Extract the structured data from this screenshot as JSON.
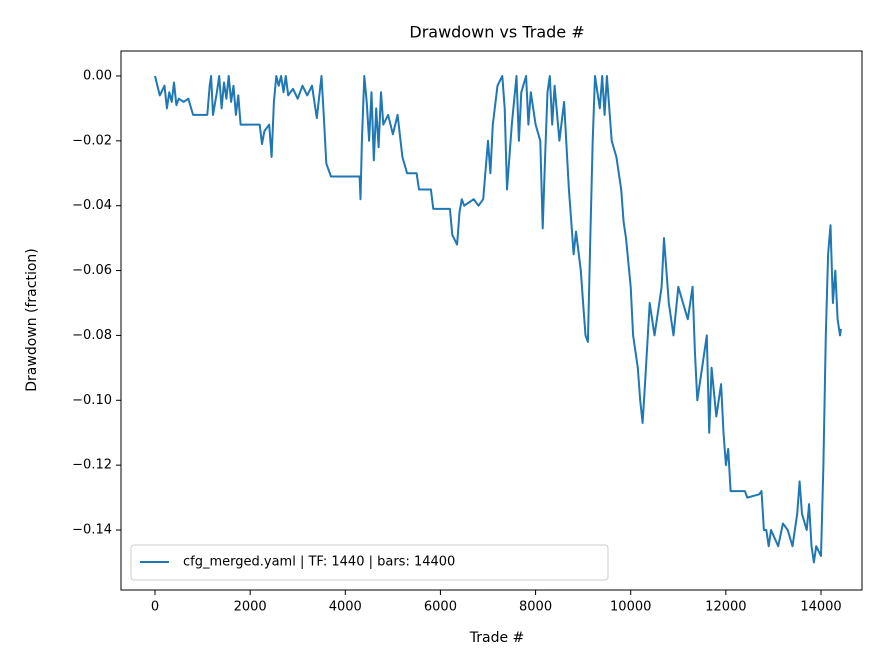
{
  "chart_data": {
    "type": "line",
    "title": "Drawdown vs Trade #",
    "x_label": "Trade #",
    "y_label": "Drawdown (fraction)",
    "legend_position": "lower left",
    "xlim": [
      -715,
      14862
    ],
    "ylim": [
      -0.1585,
      0.0077
    ],
    "xticks": [
      0,
      2000,
      4000,
      6000,
      8000,
      10000,
      12000,
      14000
    ],
    "yticks": [
      {
        "value": 0,
        "label": "0.00"
      },
      {
        "value": -0.02,
        "label": "−0.02"
      },
      {
        "value": -0.04,
        "label": "−0.04"
      },
      {
        "value": -0.06,
        "label": "−0.06"
      },
      {
        "value": -0.08,
        "label": "−0.08"
      },
      {
        "value": -0.1,
        "label": "−0.10"
      },
      {
        "value": -0.12,
        "label": "−0.12"
      },
      {
        "value": -0.14,
        "label": "−0.14"
      }
    ],
    "x": [
      0,
      100,
      200,
      250,
      300,
      350,
      400,
      450,
      500,
      600,
      700,
      800,
      1100,
      1150,
      1180,
      1220,
      1300,
      1350,
      1400,
      1450,
      1500,
      1550,
      1600,
      1650,
      1700,
      1750,
      1800,
      2200,
      2250,
      2300,
      2400,
      2450,
      2500,
      2550,
      2600,
      2650,
      2700,
      2750,
      2800,
      2900,
      3000,
      3100,
      3200,
      3300,
      3400,
      3500,
      3550,
      3600,
      3700,
      4300,
      4320,
      4350,
      4400,
      4450,
      4500,
      4550,
      4600,
      4650,
      4700,
      4750,
      4800,
      4900,
      5000,
      5100,
      5200,
      5300,
      5500,
      5550,
      5800,
      5850,
      6200,
      6250,
      6350,
      6400,
      6450,
      6500,
      6700,
      6800,
      6900,
      7000,
      7050,
      7100,
      7200,
      7300,
      7350,
      7400,
      7500,
      7600,
      7650,
      7700,
      7800,
      7850,
      7900,
      8000,
      8100,
      8150,
      8200,
      8250,
      8300,
      8350,
      8400,
      8500,
      8600,
      8700,
      8750,
      8800,
      8850,
      8950,
      9000,
      9050,
      9100,
      9150,
      9200,
      9250,
      9350,
      9400,
      9450,
      9500,
      9600,
      9700,
      9800,
      9850,
      9900,
      10000,
      10050,
      10150,
      10200,
      10250,
      10300,
      10400,
      10500,
      10600,
      10650,
      10700,
      10750,
      10800,
      10900,
      11000,
      11100,
      11200,
      11300,
      11350,
      11400,
      11500,
      11600,
      11650,
      11700,
      11800,
      11900,
      11950,
      12000,
      12050,
      12100,
      12400,
      12450,
      12700,
      12750,
      12800,
      12850,
      12900,
      12950,
      13100,
      13200,
      13300,
      13400,
      13500,
      13550,
      13600,
      13700,
      13750,
      13800,
      13850,
      13900,
      14000,
      14050,
      14100,
      14150,
      14200,
      14250,
      14300,
      14350,
      14400,
      14420
    ],
    "series": [
      {
        "name": "cfg_merged.yaml | TF: 1440 | bars: 14400",
        "color": "#1f77b4",
        "values": [
          0,
          -0.006,
          -0.003,
          -0.01,
          -0.005,
          -0.008,
          -0.002,
          -0.009,
          -0.007,
          -0.008,
          -0.007,
          -0.012,
          -0.012,
          -0.003,
          0,
          -0.012,
          -0.005,
          0,
          -0.01,
          -0.002,
          -0.007,
          0,
          -0.008,
          -0.003,
          -0.012,
          -0.006,
          -0.015,
          -0.015,
          -0.021,
          -0.017,
          -0.015,
          -0.025,
          -0.008,
          0,
          -0.003,
          0,
          -0.005,
          0,
          -0.006,
          -0.004,
          -0.007,
          -0.003,
          -0.006,
          -0.003,
          -0.013,
          0,
          -0.013,
          -0.027,
          -0.031,
          -0.031,
          -0.038,
          -0.02,
          0,
          -0.008,
          -0.02,
          -0.005,
          -0.026,
          -0.01,
          -0.022,
          -0.005,
          -0.015,
          -0.012,
          -0.018,
          -0.012,
          -0.025,
          -0.03,
          -0.03,
          -0.035,
          -0.035,
          -0.041,
          -0.041,
          -0.049,
          -0.052,
          -0.042,
          -0.038,
          -0.04,
          -0.038,
          -0.04,
          -0.038,
          -0.02,
          -0.03,
          -0.015,
          -0.003,
          0,
          -0.01,
          -0.035,
          -0.015,
          0,
          -0.02,
          -0.005,
          0,
          -0.015,
          -0.005,
          -0.015,
          -0.02,
          -0.047,
          -0.025,
          -0.005,
          0,
          -0.015,
          -0.003,
          -0.02,
          -0.008,
          -0.035,
          -0.045,
          -0.055,
          -0.048,
          -0.06,
          -0.07,
          -0.08,
          -0.082,
          -0.05,
          -0.02,
          0,
          -0.01,
          0,
          -0.012,
          0,
          -0.02,
          -0.025,
          -0.035,
          -0.045,
          -0.05,
          -0.065,
          -0.08,
          -0.09,
          -0.1,
          -0.107,
          -0.095,
          -0.07,
          -0.08,
          -0.07,
          -0.065,
          -0.05,
          -0.06,
          -0.07,
          -0.08,
          -0.065,
          -0.07,
          -0.075,
          -0.065,
          -0.085,
          -0.1,
          -0.09,
          -0.08,
          -0.11,
          -0.09,
          -0.105,
          -0.095,
          -0.11,
          -0.12,
          -0.115,
          -0.128,
          -0.128,
          -0.13,
          -0.129,
          -0.128,
          -0.14,
          -0.14,
          -0.145,
          -0.14,
          -0.145,
          -0.138,
          -0.14,
          -0.145,
          -0.135,
          -0.125,
          -0.135,
          -0.14,
          -0.132,
          -0.145,
          -0.15,
          -0.145,
          -0.148,
          -0.12,
          -0.08,
          -0.055,
          -0.046,
          -0.07,
          -0.06,
          -0.075,
          -0.08,
          -0.078
        ]
      }
    ]
  }
}
